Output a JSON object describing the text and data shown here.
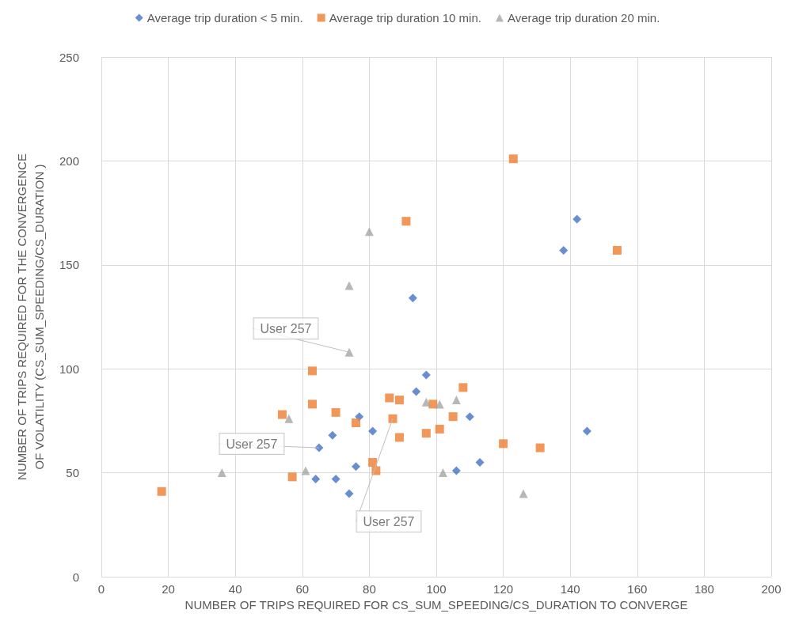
{
  "chart_data": {
    "type": "scatter",
    "xlabel": "NUMBER OF TRIPS REQUIRED FOR CS_SUM_SPEEDING/CS_DURATION TO CONVERGE",
    "ylabel": "NUMBER OF TRIPS REQUIRED FOR THE CONVERGENCE OF VOLATILITY (CS_SUM_SPEEDING/CS_DURATION )",
    "xlim": [
      0,
      200
    ],
    "xticks": [
      0,
      20,
      40,
      60,
      80,
      100,
      120,
      140,
      160,
      180,
      200
    ],
    "ylim": [
      0,
      250
    ],
    "yticks": [
      0,
      50,
      100,
      150,
      200,
      250
    ],
    "grid": true,
    "legend": "top",
    "series": [
      {
        "name": "Average trip duration < 5 min.",
        "color": "#4472c4",
        "marker": "diamond",
        "x": [
          64,
          65,
          69,
          70,
          74,
          76,
          77,
          81,
          93,
          94,
          97,
          106,
          110,
          113,
          138,
          142,
          145
        ],
        "values": [
          47,
          62,
          68,
          47,
          40,
          53,
          77,
          70,
          134,
          89,
          97,
          51,
          77,
          55,
          157,
          172,
          70
        ]
      },
      {
        "name": "Average trip duration 10 min.",
        "color": "#ed7d31",
        "marker": "square",
        "x": [
          18,
          54,
          57,
          63,
          63,
          70,
          76,
          81,
          82,
          86,
          87,
          89,
          89,
          91,
          97,
          99,
          101,
          105,
          108,
          120,
          123,
          131,
          154
        ],
        "values": [
          41,
          78,
          48,
          99,
          83,
          79,
          74,
          55,
          51,
          86,
          76,
          85,
          67,
          171,
          69,
          83,
          71,
          77,
          91,
          64,
          201,
          62,
          157
        ]
      },
      {
        "name": "Average trip duration 20 min.",
        "color": "#a5a5a5",
        "marker": "triangle",
        "x": [
          36,
          56,
          61,
          74,
          74,
          80,
          97,
          101,
          102,
          106,
          126
        ],
        "values": [
          50,
          76,
          51,
          140,
          108,
          166,
          84,
          83,
          50,
          85,
          40
        ]
      }
    ],
    "annotations": [
      {
        "text": "User 257",
        "x": 74,
        "y": 108
      },
      {
        "text": "User 257",
        "x": 65,
        "y": 62
      },
      {
        "text": "User 257",
        "x": 87,
        "y": 76
      }
    ]
  }
}
